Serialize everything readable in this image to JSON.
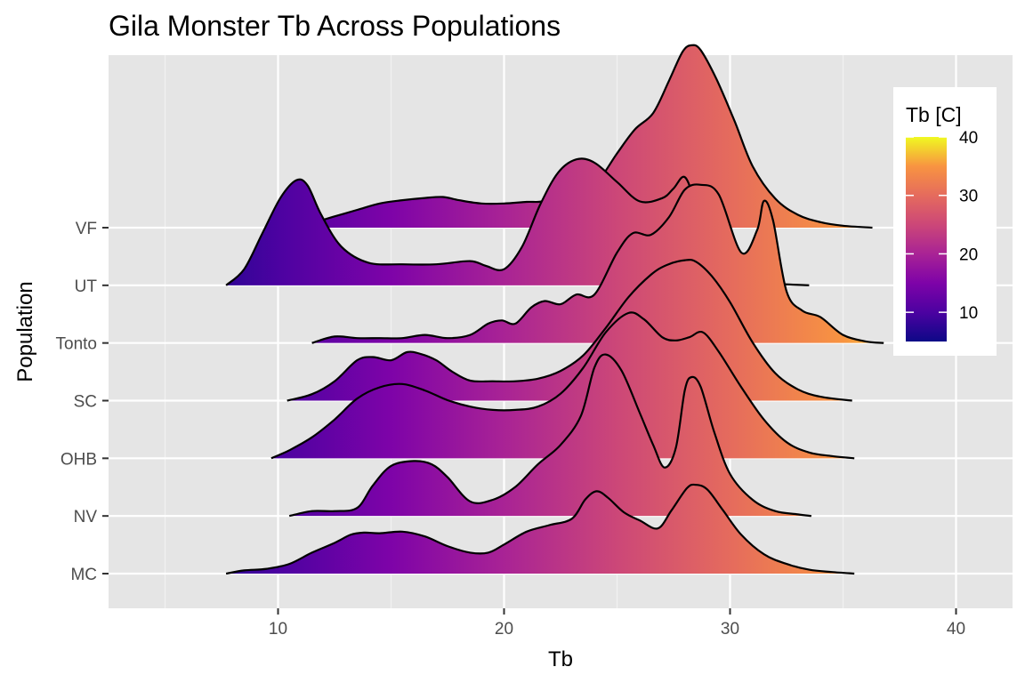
{
  "chart_data": {
    "type": "ridgeline",
    "title": "Gila Monster Tb Across Populations",
    "xlabel": "Tb",
    "ylabel": "Population",
    "xlim": [
      2.5,
      42.5
    ],
    "x_ticks": [
      10,
      20,
      30,
      40
    ],
    "categories": [
      "MC",
      "NV",
      "OHB",
      "SC",
      "Tonto",
      "UT",
      "VF"
    ],
    "grid": true,
    "legend": {
      "title": "Tb [C]",
      "position": "top-right",
      "ticks": [
        10,
        20,
        30,
        40
      ],
      "range": [
        5,
        40
      ],
      "palette": "plasma"
    },
    "series": [
      {
        "name": "MC",
        "x": [
          7.7,
          8.5,
          9.5,
          10.5,
          11.5,
          12.5,
          13.2,
          13.8,
          14.5,
          15.5,
          16.5,
          17.5,
          18.5,
          19.3,
          20,
          21,
          22,
          23,
          23.6,
          24.1,
          24.6,
          25.3,
          26,
          26.8,
          27.4,
          28.1,
          28.5,
          29,
          29.7,
          30.5,
          31.5,
          32.5,
          33.5,
          34.5,
          35.5
        ],
        "y": [
          0,
          0.1,
          0.15,
          0.3,
          0.65,
          0.95,
          1.2,
          1.27,
          1.25,
          1.3,
          1.15,
          0.85,
          0.65,
          0.65,
          0.9,
          1.3,
          1.5,
          1.7,
          2.3,
          2.55,
          2.35,
          1.9,
          1.65,
          1.4,
          1.95,
          2.65,
          2.75,
          2.6,
          1.95,
          1.2,
          0.6,
          0.3,
          0.12,
          0.05,
          0
        ]
      },
      {
        "name": "NV",
        "x": [
          10.5,
          11.5,
          12.5,
          13.5,
          14.2,
          15,
          16,
          16.8,
          17.5,
          18.5,
          19.5,
          20.5,
          21.5,
          22.5,
          23.4,
          24,
          24.5,
          25.2,
          26,
          26.6,
          27.1,
          27.6,
          28,
          28.3,
          28.7,
          29.3,
          30,
          31,
          32,
          33,
          33.6
        ],
        "y": [
          0,
          0.15,
          0.15,
          0.25,
          0.95,
          1.55,
          1.7,
          1.6,
          1.2,
          0.45,
          0.5,
          0.9,
          1.6,
          2.2,
          3.1,
          4.6,
          5,
          4.5,
          3.2,
          2.2,
          1.5,
          2.1,
          3.9,
          4.3,
          4,
          2.6,
          1.3,
          0.5,
          0.15,
          0.05,
          0
        ]
      },
      {
        "name": "OHB",
        "x": [
          9.7,
          10.5,
          11.5,
          12.5,
          13.5,
          14.5,
          15.5,
          16.5,
          17.5,
          18.5,
          19.5,
          20.5,
          21.5,
          22.5,
          23.5,
          24.5,
          25.5,
          26.2,
          27,
          27.6,
          28.2,
          28.8,
          29.5,
          30.5,
          31.5,
          32.5,
          33.5,
          34.5,
          35.5
        ],
        "y": [
          0,
          0.25,
          0.65,
          1.2,
          1.85,
          2.2,
          2.3,
          2.1,
          1.8,
          1.6,
          1.5,
          1.5,
          1.6,
          2.0,
          2.8,
          3.9,
          4.5,
          4.3,
          3.75,
          3.65,
          3.75,
          3.9,
          3.3,
          2.2,
          1.2,
          0.5,
          0.18,
          0.07,
          0
        ]
      },
      {
        "name": "SC",
        "x": [
          10.4,
          11.5,
          12.5,
          13.5,
          14.2,
          15,
          15.7,
          16.3,
          17,
          17.7,
          18.5,
          19.5,
          20.5,
          21.5,
          22.5,
          23.5,
          24.5,
          25.5,
          26.5,
          27.2,
          28,
          28.5,
          29.2,
          30,
          31,
          32,
          33,
          34,
          35.4
        ],
        "y": [
          0,
          0.2,
          0.6,
          1.25,
          1.35,
          1.25,
          1.5,
          1.45,
          1.25,
          0.9,
          0.62,
          0.6,
          0.6,
          0.68,
          0.92,
          1.4,
          2.25,
          3.2,
          3.9,
          4.2,
          4.35,
          4.3,
          3.85,
          3.05,
          1.8,
          0.85,
          0.35,
          0.12,
          0
        ]
      },
      {
        "name": "Tonto",
        "x": [
          11.5,
          12.5,
          13.5,
          14.5,
          15.5,
          16.5,
          17.5,
          18.5,
          19.3,
          19.9,
          20.5,
          21.2,
          21.8,
          22.5,
          23.2,
          24,
          25,
          25.7,
          26.5,
          27.3,
          28,
          28.7,
          29.5,
          30.5,
          31.2,
          31.5,
          31.9,
          32.5,
          33.2,
          34,
          35,
          36,
          36.8
        ],
        "y": [
          0,
          0.2,
          0.15,
          0.15,
          0.15,
          0.25,
          0.15,
          0.25,
          0.6,
          0.7,
          0.6,
          1.1,
          1.3,
          1.2,
          1.5,
          1.5,
          2.8,
          3.4,
          3.35,
          3.9,
          4.75,
          4.9,
          4.6,
          2.8,
          3.5,
          4.4,
          3.8,
          1.6,
          1.0,
          0.8,
          0.25,
          0.05,
          0
        ]
      },
      {
        "name": "UT",
        "x": [
          7.7,
          8.5,
          9.3,
          10.1,
          10.8,
          11.3,
          11.9,
          12.8,
          14,
          15.5,
          17,
          18.5,
          19.2,
          20,
          20.8,
          21.6,
          22.4,
          23.2,
          24,
          25,
          26,
          27,
          27.5,
          28,
          28.5,
          29.2,
          30,
          31,
          32,
          33.5
        ],
        "y": [
          0,
          0.5,
          1.6,
          2.7,
          3.25,
          3.1,
          2.2,
          1.2,
          0.7,
          0.65,
          0.65,
          0.75,
          0.6,
          0.5,
          1.2,
          2.5,
          3.5,
          3.9,
          3.8,
          3.2,
          2.6,
          2.7,
          3.0,
          3.35,
          2.5,
          1.2,
          0.45,
          0.15,
          0.05,
          0
        ]
      },
      {
        "name": "VF",
        "x": [
          9.6,
          10.5,
          11.5,
          12.5,
          13.5,
          14.5,
          15.5,
          16.5,
          17.3,
          18,
          19,
          20,
          21,
          21.5,
          22,
          23,
          24,
          25,
          25.8,
          26.6,
          27.3,
          27.9,
          28.3,
          28.7,
          29.4,
          30.2,
          31,
          32,
          33,
          34,
          35,
          36.3
        ],
        "y": [
          0,
          0.05,
          0.15,
          0.35,
          0.55,
          0.75,
          0.85,
          0.92,
          0.95,
          0.85,
          0.75,
          0.75,
          0.8,
          0.8,
          0.85,
          0.95,
          1.3,
          2.3,
          3.05,
          3.55,
          4.55,
          5.45,
          5.65,
          5.5,
          4.6,
          3.3,
          1.9,
          0.9,
          0.4,
          0.17,
          0.06,
          0
        ]
      }
    ]
  }
}
